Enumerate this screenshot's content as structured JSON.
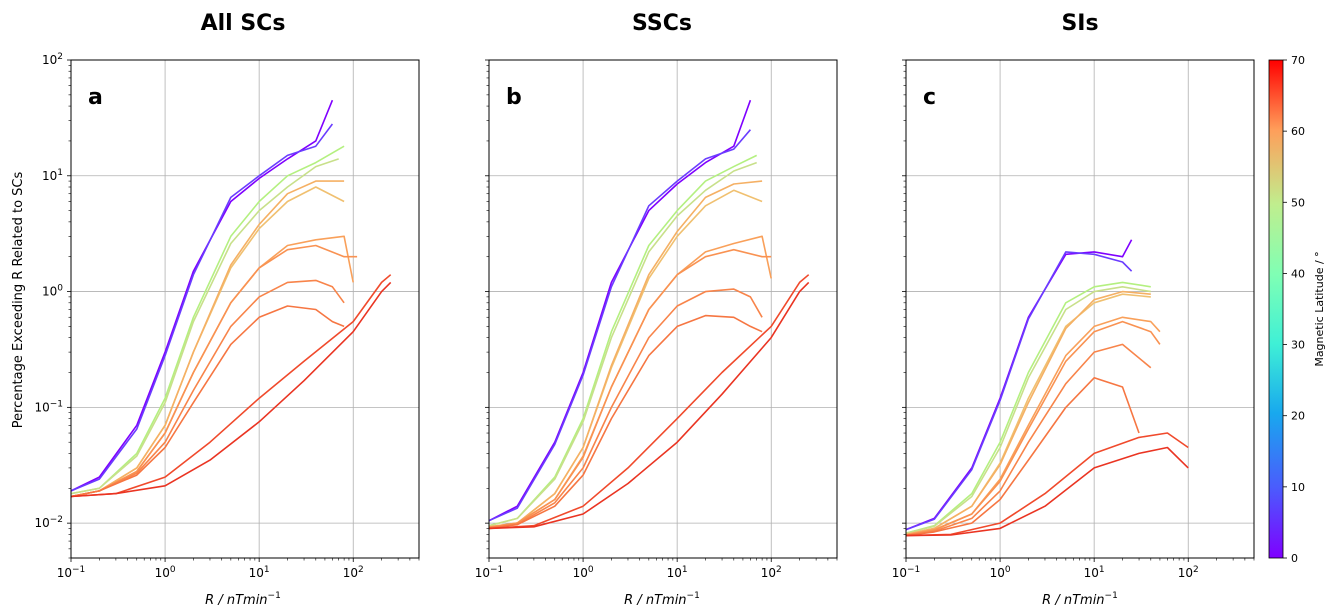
{
  "figure": {
    "ylabel": "Percentage Exceeding R Related to SCs",
    "xlabel_prefix": "R / nTmin",
    "xlabel_exponent": "−1",
    "x_scale": "log",
    "y_scale": "log",
    "xlim": [
      0.1,
      500
    ],
    "ylim": [
      0.005,
      100
    ],
    "grid": true
  },
  "colorbar": {
    "label": "Magnetic Latitude / °",
    "range": [
      0,
      70
    ],
    "ticks": [
      "0",
      "10",
      "20",
      "30",
      "40",
      "50",
      "60",
      "70"
    ],
    "colormap": "rainbow"
  },
  "chart_data": [
    {
      "type": "line",
      "title": "All SCs",
      "panel_label": "a",
      "x_ticks": [
        "10^-1",
        "10^0",
        "10^1",
        "10^2"
      ],
      "y_ticks": [
        "10^-2",
        "10^-1",
        "10^0",
        "10^1",
        "10^2"
      ],
      "series": [
        {
          "color": "#7f00ff",
          "x": [
            0.1,
            0.2,
            0.5,
            1,
            2,
            5,
            10,
            20,
            40,
            60
          ],
          "y": [
            0.019,
            0.025,
            0.07,
            0.3,
            1.5,
            6,
            9.5,
            14,
            20,
            45
          ]
        },
        {
          "color": "#6a3dff",
          "x": [
            0.1,
            0.2,
            0.5,
            1,
            2,
            5,
            10,
            20,
            40,
            60
          ],
          "y": [
            0.019,
            0.024,
            0.065,
            0.28,
            1.4,
            6.5,
            10,
            15,
            18,
            28
          ]
        },
        {
          "color": "#b4f080",
          "x": [
            0.1,
            0.2,
            0.5,
            1,
            2,
            5,
            10,
            20,
            40,
            80
          ],
          "y": [
            0.018,
            0.02,
            0.04,
            0.12,
            0.6,
            3,
            6,
            10,
            13,
            18
          ]
        },
        {
          "color": "#c8e08a",
          "x": [
            0.1,
            0.2,
            0.5,
            1,
            2,
            5,
            10,
            20,
            40,
            70
          ],
          "y": [
            0.018,
            0.02,
            0.038,
            0.11,
            0.55,
            2.6,
            5,
            8,
            12,
            14
          ]
        },
        {
          "color": "#f0c070",
          "x": [
            0.1,
            0.2,
            0.5,
            1,
            2,
            5,
            10,
            20,
            40,
            80
          ],
          "y": [
            0.017,
            0.019,
            0.03,
            0.07,
            0.3,
            1.6,
            3.5,
            6,
            8,
            6
          ]
        },
        {
          "color": "#f5b064",
          "x": [
            0.1,
            0.2,
            0.5,
            1,
            2,
            5,
            10,
            20,
            40,
            80
          ],
          "y": [
            0.017,
            0.019,
            0.03,
            0.07,
            0.3,
            1.7,
            3.8,
            7,
            9,
            9
          ]
        },
        {
          "color": "#f9a05a",
          "x": [
            0.1,
            0.2,
            0.5,
            1,
            2,
            5,
            10,
            20,
            40,
            80,
            100
          ],
          "y": [
            0.017,
            0.019,
            0.028,
            0.06,
            0.2,
            0.8,
            1.6,
            2.5,
            2.8,
            3,
            1.2
          ]
        },
        {
          "color": "#f99252",
          "x": [
            0.1,
            0.2,
            0.5,
            1,
            2,
            5,
            10,
            20,
            40,
            80,
            110
          ],
          "y": [
            0.017,
            0.019,
            0.028,
            0.06,
            0.2,
            0.8,
            1.6,
            2.3,
            2.5,
            2,
            2
          ]
        },
        {
          "color": "#f8844a",
          "x": [
            0.1,
            0.2,
            0.5,
            1,
            2,
            5,
            10,
            20,
            40,
            60,
            80
          ],
          "y": [
            0.017,
            0.019,
            0.027,
            0.05,
            0.14,
            0.5,
            0.9,
            1.2,
            1.25,
            1.1,
            0.8
          ]
        },
        {
          "color": "#f67642",
          "x": [
            0.1,
            0.2,
            0.5,
            1,
            2,
            5,
            10,
            20,
            40,
            60,
            80
          ],
          "y": [
            0.017,
            0.019,
            0.026,
            0.045,
            0.11,
            0.35,
            0.6,
            0.75,
            0.7,
            0.55,
            0.5
          ]
        },
        {
          "color": "#f04a2c",
          "x": [
            0.1,
            0.3,
            1,
            3,
            10,
            30,
            100,
            200,
            250
          ],
          "y": [
            0.017,
            0.018,
            0.025,
            0.05,
            0.12,
            0.25,
            0.55,
            1.2,
            1.4
          ]
        },
        {
          "color": "#ea3422",
          "x": [
            0.1,
            0.3,
            1,
            3,
            10,
            30,
            100,
            200,
            250
          ],
          "y": [
            0.017,
            0.018,
            0.021,
            0.035,
            0.075,
            0.17,
            0.45,
            1,
            1.2
          ]
        }
      ]
    },
    {
      "type": "line",
      "title": "SSCs",
      "panel_label": "b",
      "x_ticks": [
        "10^-1",
        "10^0",
        "10^1",
        "10^2"
      ],
      "y_ticks": [],
      "series": [
        {
          "color": "#7f00ff",
          "x": [
            0.1,
            0.2,
            0.5,
            1,
            2,
            5,
            10,
            20,
            40,
            60
          ],
          "y": [
            0.0105,
            0.014,
            0.05,
            0.2,
            1.2,
            5,
            8.5,
            13,
            18,
            45
          ]
        },
        {
          "color": "#6a3dff",
          "x": [
            0.1,
            0.2,
            0.5,
            1,
            2,
            5,
            10,
            20,
            40,
            60
          ],
          "y": [
            0.0105,
            0.0135,
            0.048,
            0.19,
            1.1,
            5.5,
            9,
            14,
            17,
            25
          ]
        },
        {
          "color": "#b4f080",
          "x": [
            0.1,
            0.2,
            0.5,
            1,
            2,
            5,
            10,
            20,
            40,
            70
          ],
          "y": [
            0.0095,
            0.011,
            0.025,
            0.08,
            0.45,
            2.5,
            5,
            9,
            12,
            15
          ]
        },
        {
          "color": "#c8e08a",
          "x": [
            0.1,
            0.2,
            0.5,
            1,
            2,
            5,
            10,
            20,
            40,
            70
          ],
          "y": [
            0.0095,
            0.011,
            0.024,
            0.075,
            0.4,
            2.2,
            4.5,
            7.5,
            11,
            13
          ]
        },
        {
          "color": "#f0c070",
          "x": [
            0.1,
            0.2,
            0.5,
            1,
            2,
            5,
            10,
            20,
            40,
            80
          ],
          "y": [
            0.0093,
            0.01,
            0.018,
            0.045,
            0.22,
            1.3,
            3,
            5.5,
            7.5,
            6
          ]
        },
        {
          "color": "#f5b064",
          "x": [
            0.1,
            0.2,
            0.5,
            1,
            2,
            5,
            10,
            20,
            40,
            80
          ],
          "y": [
            0.0093,
            0.01,
            0.018,
            0.045,
            0.23,
            1.4,
            3.3,
            6.5,
            8.5,
            9
          ]
        },
        {
          "color": "#f9a05a",
          "x": [
            0.1,
            0.2,
            0.5,
            1,
            2,
            5,
            10,
            20,
            40,
            80,
            100
          ],
          "y": [
            0.0092,
            0.01,
            0.016,
            0.038,
            0.15,
            0.7,
            1.4,
            2.2,
            2.6,
            3,
            1.3
          ]
        },
        {
          "color": "#f99252",
          "x": [
            0.1,
            0.2,
            0.5,
            1,
            2,
            5,
            10,
            20,
            40,
            80,
            100
          ],
          "y": [
            0.0092,
            0.01,
            0.016,
            0.037,
            0.15,
            0.7,
            1.4,
            2,
            2.3,
            2,
            2
          ]
        },
        {
          "color": "#f8844a",
          "x": [
            0.1,
            0.2,
            0.5,
            1,
            2,
            5,
            10,
            20,
            40,
            60,
            80
          ],
          "y": [
            0.0091,
            0.0098,
            0.015,
            0.03,
            0.1,
            0.4,
            0.75,
            1,
            1.05,
            0.9,
            0.6
          ]
        },
        {
          "color": "#f67642",
          "x": [
            0.1,
            0.2,
            0.5,
            1,
            2,
            5,
            10,
            20,
            40,
            60,
            80
          ],
          "y": [
            0.0091,
            0.0097,
            0.014,
            0.026,
            0.08,
            0.28,
            0.5,
            0.62,
            0.6,
            0.5,
            0.45
          ]
        },
        {
          "color": "#f04a2c",
          "x": [
            0.1,
            0.3,
            1,
            3,
            10,
            30,
            100,
            200,
            250
          ],
          "y": [
            0.009,
            0.0095,
            0.014,
            0.03,
            0.08,
            0.2,
            0.5,
            1.2,
            1.4
          ]
        },
        {
          "color": "#ea3422",
          "x": [
            0.1,
            0.3,
            1,
            3,
            10,
            30,
            100,
            200,
            250
          ],
          "y": [
            0.009,
            0.0093,
            0.012,
            0.022,
            0.05,
            0.13,
            0.4,
            1,
            1.2
          ]
        }
      ]
    },
    {
      "type": "line",
      "title": "SIs",
      "panel_label": "c",
      "x_ticks": [
        "10^-1",
        "10^0",
        "10^1",
        "10^2"
      ],
      "y_ticks": [],
      "series": [
        {
          "color": "#7f00ff",
          "x": [
            0.1,
            0.2,
            0.5,
            1,
            2,
            5,
            10,
            20,
            25
          ],
          "y": [
            0.0088,
            0.011,
            0.03,
            0.12,
            0.6,
            2.1,
            2.2,
            2,
            2.8
          ]
        },
        {
          "color": "#6a3dff",
          "x": [
            0.1,
            0.2,
            0.5,
            1,
            2,
            5,
            10,
            20,
            25
          ],
          "y": [
            0.0088,
            0.0108,
            0.029,
            0.115,
            0.58,
            2.2,
            2.1,
            1.8,
            1.5
          ]
        },
        {
          "color": "#b4f080",
          "x": [
            0.1,
            0.2,
            0.5,
            1,
            2,
            5,
            10,
            20,
            40
          ],
          "y": [
            0.0082,
            0.0095,
            0.018,
            0.05,
            0.2,
            0.8,
            1.1,
            1.2,
            1.1
          ]
        },
        {
          "color": "#c8e08a",
          "x": [
            0.1,
            0.2,
            0.5,
            1,
            2,
            5,
            10,
            20,
            40
          ],
          "y": [
            0.0082,
            0.0094,
            0.017,
            0.045,
            0.18,
            0.7,
            1,
            1.1,
            1
          ]
        },
        {
          "color": "#f0c070",
          "x": [
            0.1,
            0.2,
            0.5,
            1,
            2,
            5,
            10,
            20,
            40
          ],
          "y": [
            0.008,
            0.009,
            0.014,
            0.033,
            0.12,
            0.5,
            0.8,
            0.95,
            0.9
          ]
        },
        {
          "color": "#f5b064",
          "x": [
            0.1,
            0.2,
            0.5,
            1,
            2,
            5,
            10,
            20,
            40
          ],
          "y": [
            0.008,
            0.009,
            0.014,
            0.032,
            0.11,
            0.48,
            0.85,
            1,
            0.95
          ]
        },
        {
          "color": "#f9a05a",
          "x": [
            0.1,
            0.2,
            0.5,
            1,
            2,
            5,
            10,
            20,
            40,
            50
          ],
          "y": [
            0.0079,
            0.0088,
            0.012,
            0.024,
            0.07,
            0.28,
            0.5,
            0.6,
            0.55,
            0.45
          ]
        },
        {
          "color": "#f99252",
          "x": [
            0.1,
            0.2,
            0.5,
            1,
            2,
            5,
            10,
            20,
            40,
            50
          ],
          "y": [
            0.0079,
            0.0087,
            0.012,
            0.023,
            0.065,
            0.25,
            0.45,
            0.55,
            0.45,
            0.35
          ]
        },
        {
          "color": "#f8844a",
          "x": [
            0.1,
            0.2,
            0.5,
            1,
            2,
            5,
            10,
            20,
            40
          ],
          "y": [
            0.0078,
            0.0085,
            0.011,
            0.019,
            0.05,
            0.16,
            0.3,
            0.35,
            0.22
          ]
        },
        {
          "color": "#f67642",
          "x": [
            0.1,
            0.2,
            0.5,
            1,
            2,
            5,
            10,
            20,
            30
          ],
          "y": [
            0.0078,
            0.0084,
            0.01,
            0.016,
            0.035,
            0.1,
            0.18,
            0.15,
            0.06
          ]
        },
        {
          "color": "#f04a2c",
          "x": [
            0.1,
            0.3,
            1,
            3,
            10,
            30,
            60,
            100
          ],
          "y": [
            0.0078,
            0.008,
            0.01,
            0.018,
            0.04,
            0.055,
            0.06,
            0.045
          ]
        },
        {
          "color": "#ea3422",
          "x": [
            0.1,
            0.3,
            1,
            3,
            10,
            30,
            60,
            100
          ],
          "y": [
            0.0078,
            0.0079,
            0.009,
            0.014,
            0.03,
            0.04,
            0.045,
            0.03
          ]
        }
      ]
    }
  ]
}
